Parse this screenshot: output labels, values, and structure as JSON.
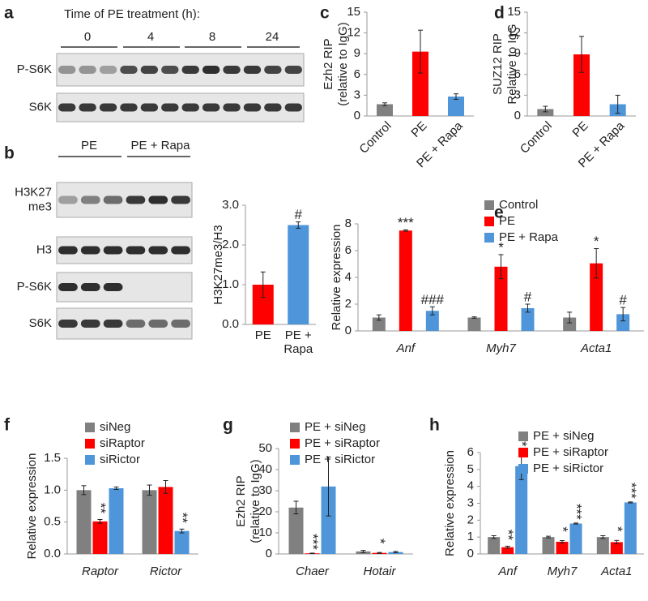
{
  "blots": [
    {
      "panel": "a",
      "title": "Time of PE treatment (h):",
      "lanes": [
        "0",
        "4",
        "8",
        "24"
      ],
      "rows": [
        "P-S6K",
        "S6K"
      ]
    },
    {
      "panel": "b",
      "groups": [
        "PE",
        "PE + Rapa"
      ],
      "rows": [
        [
          "H3K27",
          "me3"
        ],
        "H3",
        "P-S6K",
        "S6K"
      ]
    }
  ],
  "chart_data": [
    {
      "type": "bar",
      "panel": "c",
      "ylabel": [
        "Ezh2 RIP",
        "(relative to IgG)"
      ],
      "categories": [
        "Control",
        "PE",
        "PE + Rapa"
      ],
      "values": [
        1.7,
        9.3,
        2.8
      ],
      "errors": [
        0.2,
        3.1,
        0.4
      ],
      "colors": [
        "#808080",
        "#ff0000",
        "#4e95d9"
      ],
      "ylim": [
        0,
        15
      ],
      "yticks": [
        0,
        3,
        6,
        9,
        12,
        15
      ]
    },
    {
      "type": "bar",
      "panel": "d",
      "ylabel": [
        "SUZ12 RIP",
        "Relative to IgG"
      ],
      "categories": [
        "Control",
        "PE",
        "PE + Rapa"
      ],
      "values": [
        1.0,
        8.9,
        1.7
      ],
      "errors": [
        0.4,
        2.6,
        1.3
      ],
      "colors": [
        "#808080",
        "#ff0000",
        "#4e95d9"
      ],
      "ylim": [
        0,
        15
      ],
      "yticks": [
        0,
        3,
        6,
        9,
        12,
        15
      ]
    },
    {
      "type": "bar",
      "ylabel": "H3K27me3/H3",
      "categories": [
        "PE",
        [
          "PE +",
          "Rapa"
        ]
      ],
      "values": [
        1.0,
        2.5
      ],
      "errors": [
        0.32,
        0.08
      ],
      "annotations": [
        null,
        "#"
      ],
      "colors": [
        "#ff0000",
        "#4e95d9"
      ],
      "ylim": [
        0,
        3
      ],
      "yticks": [
        {
          "value": 0,
          "label": "0.0"
        },
        {
          "value": 1,
          "label": "1.0"
        },
        {
          "value": 2,
          "label": "2.0"
        },
        {
          "value": 3,
          "label": "3.0"
        }
      ]
    },
    {
      "type": "bar",
      "panel": "e",
      "ylabel": "Relative expression",
      "categories": [
        "Anf",
        "Myh7",
        "Acta1"
      ],
      "series": [
        {
          "name": "Control",
          "color": "#808080",
          "values": [
            1.0,
            1.0,
            1.0
          ],
          "errors": [
            0.2,
            0.05,
            0.4
          ],
          "annotations": [
            null,
            null,
            null
          ]
        },
        {
          "name": "PE",
          "color": "#ff0000",
          "values": [
            7.5,
            4.8,
            5.05
          ],
          "errors": [
            0.05,
            0.9,
            1.1
          ],
          "annotations": [
            "***",
            "*",
            "*"
          ]
        },
        {
          "name": "PE + Rapa",
          "color": "#4e95d9",
          "values": [
            1.5,
            1.7,
            1.25
          ],
          "errors": [
            0.3,
            0.3,
            0.5
          ],
          "annotations": [
            "###",
            "#",
            "#"
          ]
        }
      ],
      "ylim": [
        0,
        8
      ],
      "yticks": [
        0,
        2,
        4,
        6,
        8
      ],
      "legend": true
    },
    {
      "type": "bar",
      "panel": "f",
      "ylabel": "Relative expression",
      "categories": [
        "Raptor",
        "Rictor"
      ],
      "series": [
        {
          "name": "siNeg",
          "color": "#808080",
          "values": [
            1.0,
            1.0
          ],
          "errors": [
            0.07,
            0.08
          ],
          "annotations": [
            null,
            null
          ]
        },
        {
          "name": "siRaptor",
          "color": "#ff0000",
          "values": [
            0.51,
            1.05
          ],
          "errors": [
            0.03,
            0.1
          ],
          "annotations": [
            "**",
            null
          ]
        },
        {
          "name": "siRictor",
          "color": "#4e95d9",
          "values": [
            1.03,
            0.36
          ],
          "errors": [
            0.02,
            0.03
          ],
          "annotations": [
            null,
            "**"
          ]
        }
      ],
      "ylim": [
        0,
        1.5
      ],
      "yticks": [
        {
          "value": 0,
          "label": "0.0"
        },
        {
          "value": 0.5,
          "label": "0.5"
        },
        {
          "value": 1,
          "label": "1.0"
        },
        {
          "value": 1.5,
          "label": "1.5"
        }
      ],
      "legend": true,
      "vertical_annotations": true
    },
    {
      "type": "bar",
      "panel": "g",
      "ylabel": [
        "Ezh2 RIP",
        "(relative to IgG)"
      ],
      "categories": [
        "Chaer",
        "Hotair"
      ],
      "series": [
        {
          "name": "PE + siNeg",
          "color": "#808080",
          "values": [
            22,
            1.2
          ],
          "errors": [
            3,
            0.5
          ],
          "annotations": [
            null,
            null
          ]
        },
        {
          "name": "PE + siRaptor",
          "color": "#ff0000",
          "values": [
            0.3,
            0.5
          ],
          "errors": [
            0.1,
            0.2
          ],
          "annotations": [
            "***",
            "*"
          ]
        },
        {
          "name": "PE + siRictor",
          "color": "#4e95d9",
          "values": [
            32,
            0.9
          ],
          "errors": [
            14,
            0.3
          ],
          "annotations": [
            null,
            null
          ]
        }
      ],
      "ylim": [
        0,
        50
      ],
      "yticks": [
        0,
        10,
        20,
        30,
        40,
        50
      ],
      "legend": true,
      "vertical_annotations": true
    },
    {
      "type": "bar",
      "panel": "h",
      "ylabel": "Relative expression",
      "categories": [
        "Anf",
        "Myh7",
        "Acta1"
      ],
      "series": [
        {
          "name": "PE + siNeg",
          "color": "#808080",
          "values": [
            1.0,
            1.0,
            1.0
          ],
          "errors": [
            0.08,
            0.05,
            0.08
          ],
          "annotations": [
            null,
            null,
            null
          ]
        },
        {
          "name": "PE + siRaptor",
          "color": "#ff0000",
          "values": [
            0.4,
            0.72,
            0.7
          ],
          "errors": [
            0.06,
            0.07,
            0.1
          ],
          "annotations": [
            "**",
            "*",
            "*"
          ]
        },
        {
          "name": "PE + siRictor",
          "color": "#4e95d9",
          "values": [
            5.2,
            1.8,
            3.05
          ],
          "errors": [
            0.8,
            0.03,
            0.03
          ],
          "annotations": [
            "**",
            "***",
            "***"
          ]
        }
      ],
      "ylim": [
        0,
        6
      ],
      "yticks": [
        0,
        1,
        2,
        3,
        4,
        5,
        6
      ],
      "legend": true,
      "vertical_annotations": true
    }
  ]
}
